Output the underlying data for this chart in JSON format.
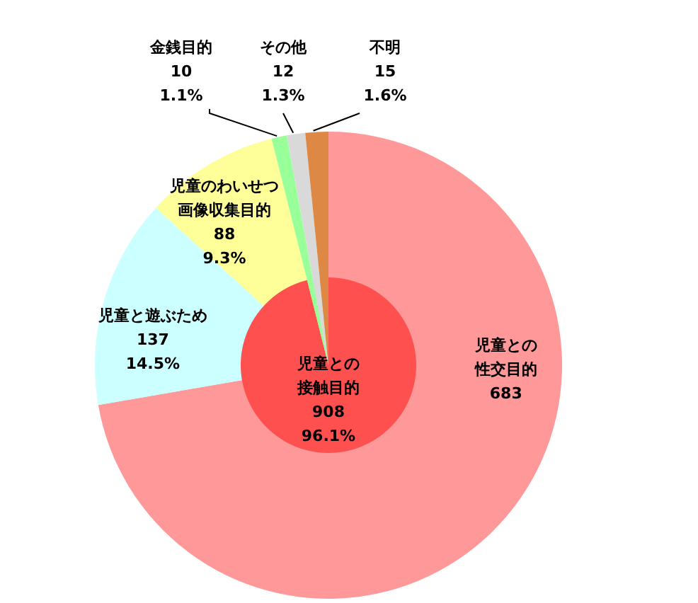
{
  "chart_data": [
    {
      "type": "pie",
      "categories": [
        "児童との性交目的",
        "児童と遊ぶため",
        "児童のわいせつ画像収集目的",
        "金銭目的",
        "その他",
        "不明"
      ],
      "values": [
        683,
        137,
        88,
        10,
        12,
        15
      ],
      "value_labels": [
        "683",
        "137 14.5%",
        "88 9.3%",
        "10 1.1%",
        "12 1.3%",
        "15 1.6%"
      ],
      "colors": [
        "#ff9999",
        "#ccffff",
        "#ffff99",
        "#99ff99",
        "#d9d9d9",
        "#dd8844"
      ]
    },
    {
      "type": "pie",
      "categories": [
        "児童との接触目的",
        null,
        null,
        null
      ],
      "values": [
        908,
        10,
        12,
        15
      ],
      "value_labels": [
        "908 96.1%",
        null,
        null,
        null
      ],
      "colors": [
        "#ff5050",
        "#99ff99",
        "#d9d9d9",
        "#dd8844"
      ]
    }
  ]
}
